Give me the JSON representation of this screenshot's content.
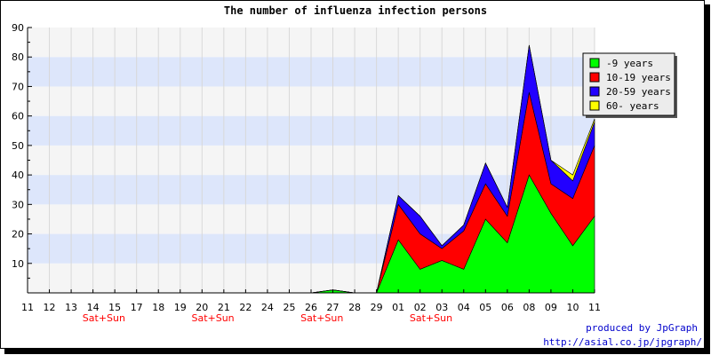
{
  "chart_data": {
    "type": "area",
    "stacked": true,
    "title": "The number of influenza infection persons",
    "xlabel": "",
    "ylabel": "",
    "ylim": [
      0,
      90
    ],
    "y_ticks": [
      10,
      20,
      30,
      40,
      50,
      60,
      70,
      80,
      90
    ],
    "grid": true,
    "legend_position": "top-right",
    "categories": [
      "11",
      "12",
      "13",
      "14",
      "15",
      "17",
      "18",
      "19",
      "20",
      "21",
      "22",
      "24",
      "25",
      "26",
      "27",
      "28",
      "29",
      "01",
      "02",
      "03",
      "04",
      "05",
      "06",
      "08",
      "09",
      "10",
      "11"
    ],
    "weekend_labels": [
      {
        "index": 3,
        "text": "Sat+Sun"
      },
      {
        "index": 8,
        "text": "Sat+Sun"
      },
      {
        "index": 13,
        "text": "Sat+Sun"
      },
      {
        "index": 18,
        "text": "Sat+Sun"
      }
    ],
    "series": [
      {
        "name": "-9 years",
        "color": "#00ff00",
        "values": [
          0,
          0,
          0,
          0,
          0,
          0,
          0,
          0,
          0,
          0,
          0,
          0,
          0,
          0,
          1,
          0,
          0,
          18,
          8,
          11,
          8,
          25,
          17,
          40,
          27,
          16,
          26
        ]
      },
      {
        "name": "10-19 years",
        "color": "#ff0000",
        "values": [
          0,
          0,
          0,
          0,
          0,
          0,
          0,
          0,
          0,
          0,
          0,
          0,
          0,
          0,
          0,
          0,
          0,
          12,
          12,
          4,
          13,
          12,
          9,
          28,
          10,
          16,
          24
        ]
      },
      {
        "name": "20-59 years",
        "color": "#2200ff",
        "values": [
          0,
          0,
          0,
          0,
          0,
          0,
          0,
          0,
          0,
          0,
          0,
          0,
          0,
          0,
          0,
          0,
          0,
          3,
          6,
          1,
          2,
          7,
          3,
          16,
          8,
          6,
          8
        ]
      },
      {
        "name": "60- years",
        "color": "#ffff00",
        "values": [
          0,
          0,
          0,
          0,
          0,
          0,
          0,
          0,
          0,
          0,
          0,
          0,
          0,
          0,
          0,
          0,
          0,
          0,
          0,
          0,
          0,
          0,
          0,
          0,
          0,
          2,
          1
        ]
      }
    ],
    "band_colors": [
      "#f5f5f5",
      "#dde6fb"
    ]
  },
  "credits": {
    "line1": "produced by JpGraph",
    "line2": "http://asial.co.jp/jpgraph/"
  }
}
